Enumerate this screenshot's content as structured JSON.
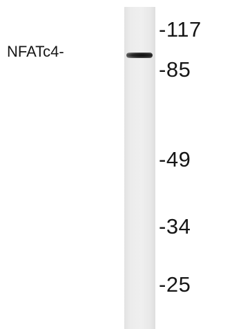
{
  "blot": {
    "protein_label": "NFATc4-",
    "markers": [
      "-117",
      "-85",
      "-49",
      "-34",
      "-25"
    ]
  }
}
